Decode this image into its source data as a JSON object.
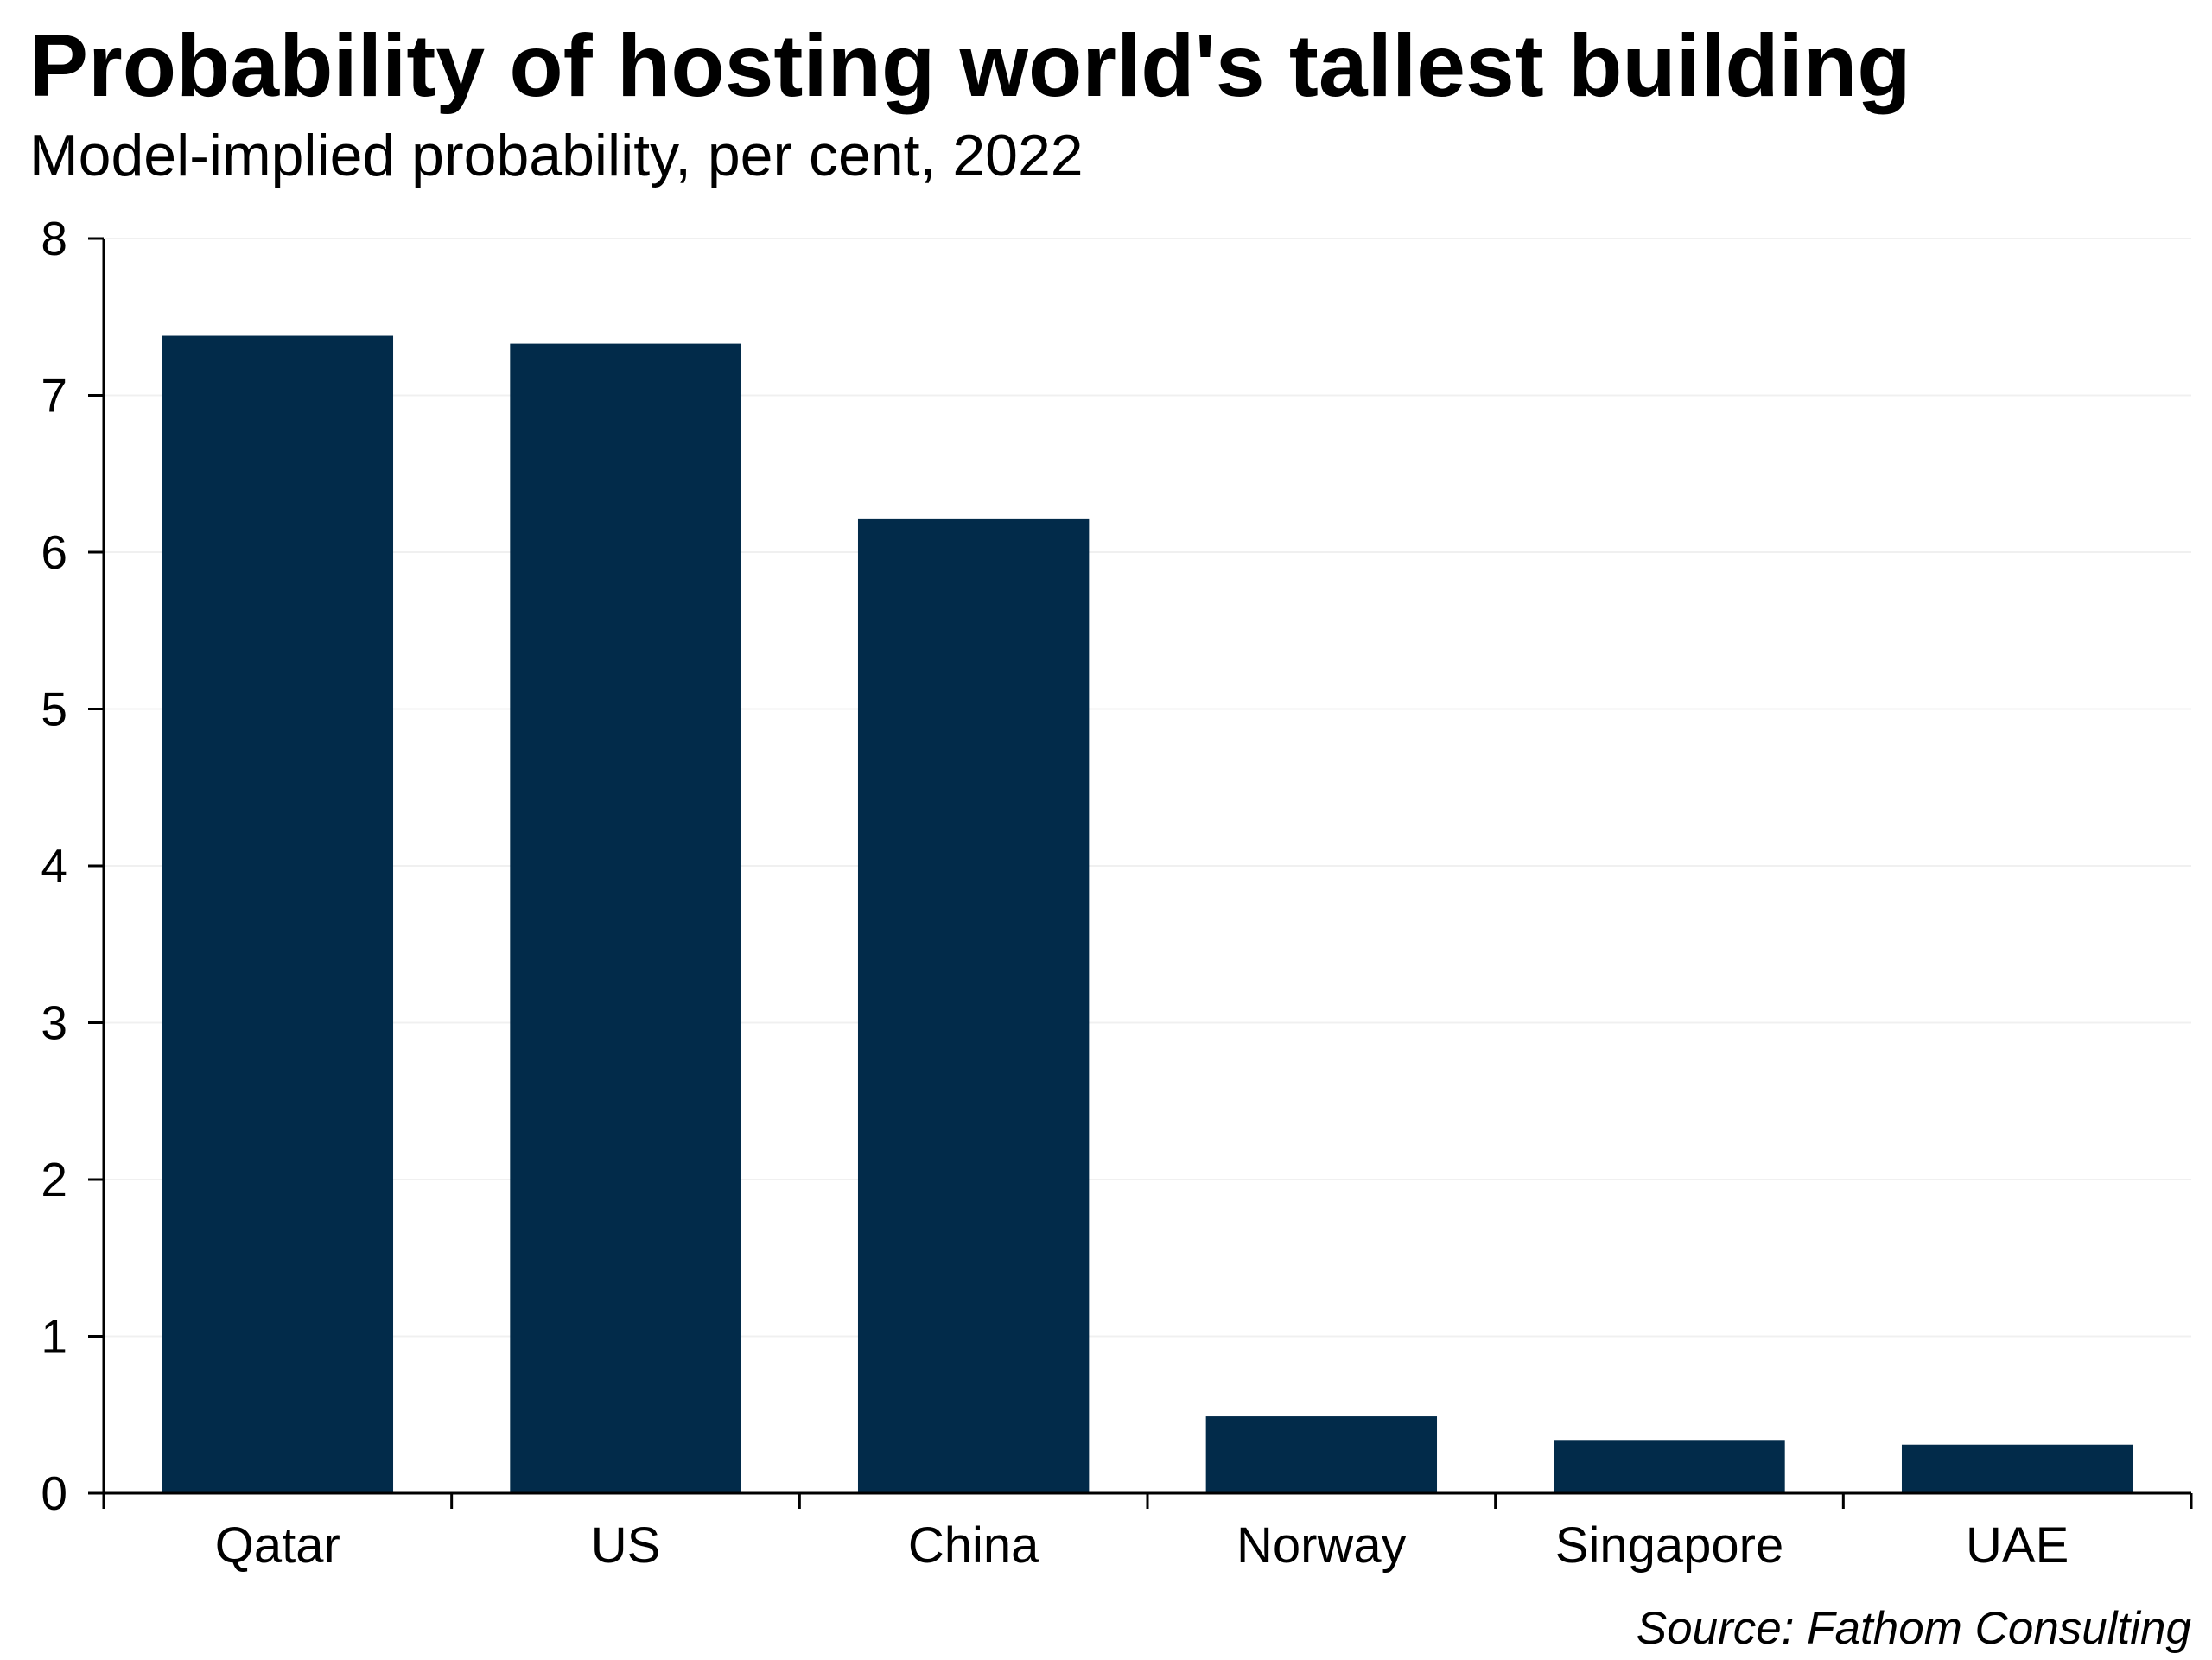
{
  "title": "Probability of hosting world's tallest building",
  "subtitle": "Model-implied probability, per cent, 2022",
  "source": "Source: Fathom Consulting",
  "colors": {
    "bar": "#022b4a",
    "axis": "#000000",
    "grid": "#f0f0f0",
    "text": "#000000"
  },
  "chart_data": {
    "type": "bar",
    "title": "Probability of hosting world's tallest building",
    "subtitle": "Model-implied probability, per cent, 2022",
    "xlabel": "",
    "ylabel": "",
    "categories": [
      "Qatar",
      "US",
      "China",
      "Norway",
      "Singapore",
      "UAE"
    ],
    "values": [
      7.38,
      7.33,
      6.21,
      0.49,
      0.34,
      0.31
    ],
    "ylim": [
      0,
      8
    ],
    "yticks": [
      0,
      1,
      2,
      3,
      4,
      5,
      6,
      7,
      8
    ],
    "ytick_labels": [
      "0",
      "1",
      "2",
      "3",
      "4",
      "5",
      "6",
      "7",
      "8"
    ],
    "grid": true,
    "legend": "none"
  }
}
